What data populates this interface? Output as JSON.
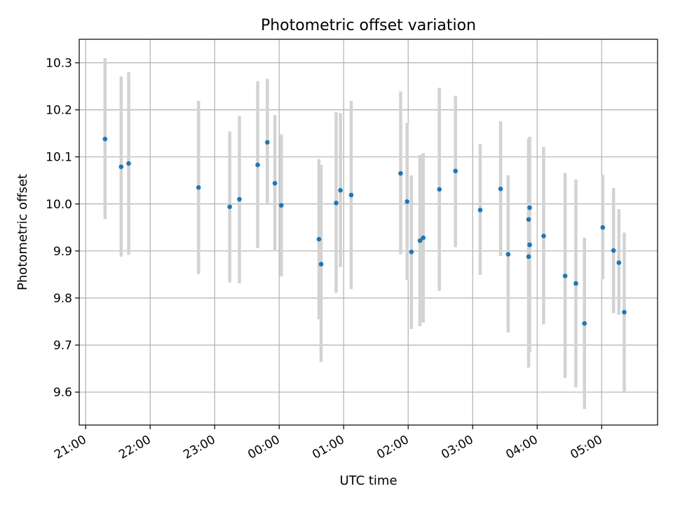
{
  "chart_data": {
    "type": "scatter",
    "title": "Photometric offset variation",
    "xlabel": "UTC time",
    "ylabel": "Photometric offset",
    "xlim": [
      "20:54",
      "05:52"
    ],
    "ylim": [
      9.53,
      10.35
    ],
    "x_ticks": [
      "21:00",
      "22:00",
      "23:00",
      "00:00",
      "01:00",
      "02:00",
      "03:00",
      "04:00",
      "05:00"
    ],
    "y_ticks": [
      "9.6",
      "9.7",
      "9.8",
      "9.9",
      "10.0",
      "10.1",
      "10.2",
      "10.3"
    ],
    "grid": true,
    "colors": {
      "point": "#1f77b4",
      "errorbar": "#d3d3d3",
      "grid": "#b0b0b0"
    },
    "points": [
      {
        "t": "21:18",
        "y": 10.138,
        "lo": 9.968,
        "hi": 10.31
      },
      {
        "t": "21:33",
        "y": 10.079,
        "lo": 9.888,
        "hi": 10.271
      },
      {
        "t": "21:40",
        "y": 10.086,
        "lo": 9.892,
        "hi": 10.28
      },
      {
        "t": "22:45",
        "y": 10.035,
        "lo": 9.851,
        "hi": 10.219
      },
      {
        "t": "23:14",
        "y": 9.994,
        "lo": 9.833,
        "hi": 10.154
      },
      {
        "t": "23:23",
        "y": 10.01,
        "lo": 9.831,
        "hi": 10.187
      },
      {
        "t": "23:40",
        "y": 10.083,
        "lo": 9.906,
        "hi": 10.261
      },
      {
        "t": "23:49",
        "y": 10.131,
        "lo": 9.998,
        "hi": 10.266
      },
      {
        "t": "23:56",
        "y": 10.044,
        "lo": 9.899,
        "hi": 10.189
      },
      {
        "t": "00:02",
        "y": 9.997,
        "lo": 9.846,
        "hi": 10.148
      },
      {
        "t": "00:37",
        "y": 9.925,
        "lo": 9.755,
        "hi": 10.095
      },
      {
        "t": "00:39",
        "y": 9.872,
        "lo": 9.664,
        "hi": 10.083
      },
      {
        "t": "00:53",
        "y": 10.002,
        "lo": 9.811,
        "hi": 10.195
      },
      {
        "t": "00:57",
        "y": 10.029,
        "lo": 9.866,
        "hi": 10.193
      },
      {
        "t": "01:07",
        "y": 10.019,
        "lo": 9.819,
        "hi": 10.219
      },
      {
        "t": "01:53",
        "y": 10.065,
        "lo": 9.893,
        "hi": 10.239
      },
      {
        "t": "01:59",
        "y": 10.005,
        "lo": 9.838,
        "hi": 10.172
      },
      {
        "t": "02:03",
        "y": 9.898,
        "lo": 9.734,
        "hi": 10.061
      },
      {
        "t": "02:11",
        "y": 9.922,
        "lo": 9.74,
        "hi": 10.104
      },
      {
        "t": "02:14",
        "y": 9.928,
        "lo": 9.748,
        "hi": 10.108
      },
      {
        "t": "02:29",
        "y": 10.031,
        "lo": 9.815,
        "hi": 10.247
      },
      {
        "t": "02:44",
        "y": 10.07,
        "lo": 9.908,
        "hi": 10.23
      },
      {
        "t": "03:07",
        "y": 9.987,
        "lo": 9.849,
        "hi": 10.127
      },
      {
        "t": "03:26",
        "y": 10.032,
        "lo": 9.889,
        "hi": 10.176
      },
      {
        "t": "03:33",
        "y": 9.893,
        "lo": 9.727,
        "hi": 10.061
      },
      {
        "t": "03:52",
        "y": 9.967,
        "lo": 9.795,
        "hi": 10.139
      },
      {
        "t": "03:52",
        "y": 9.888,
        "lo": 9.652,
        "hi": 10.124
      },
      {
        "t": "03:53",
        "y": 9.913,
        "lo": 9.685,
        "hi": 10.141
      },
      {
        "t": "03:53",
        "y": 9.992,
        "lo": 9.843,
        "hi": 10.143
      },
      {
        "t": "04:06",
        "y": 9.932,
        "lo": 9.744,
        "hi": 10.121
      },
      {
        "t": "04:26",
        "y": 9.847,
        "lo": 9.63,
        "hi": 10.066
      },
      {
        "t": "04:36",
        "y": 9.831,
        "lo": 9.61,
        "hi": 10.052
      },
      {
        "t": "04:44",
        "y": 9.746,
        "lo": 9.564,
        "hi": 9.928
      },
      {
        "t": "05:01",
        "y": 9.95,
        "lo": 9.84,
        "hi": 10.062
      },
      {
        "t": "05:11",
        "y": 9.901,
        "lo": 9.768,
        "hi": 10.034
      },
      {
        "t": "05:16",
        "y": 9.875,
        "lo": 9.764,
        "hi": 9.989
      },
      {
        "t": "05:21",
        "y": 9.77,
        "lo": 9.6,
        "hi": 9.939
      }
    ]
  }
}
